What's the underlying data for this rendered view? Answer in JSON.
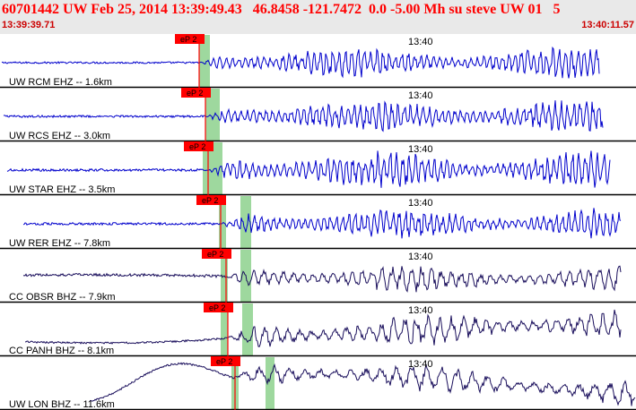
{
  "header": {
    "title": "60701442 UW Feb 25, 2014 13:39:49.43   46.8458 -121.7472  0.0 -5.00 Mh su steve UW 01   5",
    "start_time": "13:39:39.71",
    "end_time": "13:40:11.57"
  },
  "colors": {
    "header_bg": "#e9e9e9",
    "header_text": "#ff0000",
    "ehz_trace": "#0000cc",
    "bhz_trace": "#1a0f5c",
    "pick_flag": "#ff0000",
    "pick_window": "#9ed89e",
    "panel_border": "#000000"
  },
  "chart_data": {
    "type": "line",
    "time_range": [
      "13:39:39.71",
      "13:40:11.57"
    ],
    "time_marker_label": "13:40",
    "phase_label": "eP 2",
    "traces": [
      {
        "label": "UW RCM EHZ -- 1.6km",
        "kind": "EHZ"
      },
      {
        "label": "UW RCS EHZ -- 3.0km",
        "kind": "EHZ"
      },
      {
        "label": "UW STAR EHZ -- 3.5km",
        "kind": "EHZ"
      },
      {
        "label": "UW RER EHZ -- 7.8km",
        "kind": "EHZ"
      },
      {
        "label": "CC OBSR BHZ -- 7.9km",
        "kind": "BHZ"
      },
      {
        "label": "CC PANH BHZ -- 8.1km",
        "kind": "BHZ"
      },
      {
        "label": "UW LON BHZ -- 11.6km",
        "kind": "BHZ"
      }
    ]
  }
}
